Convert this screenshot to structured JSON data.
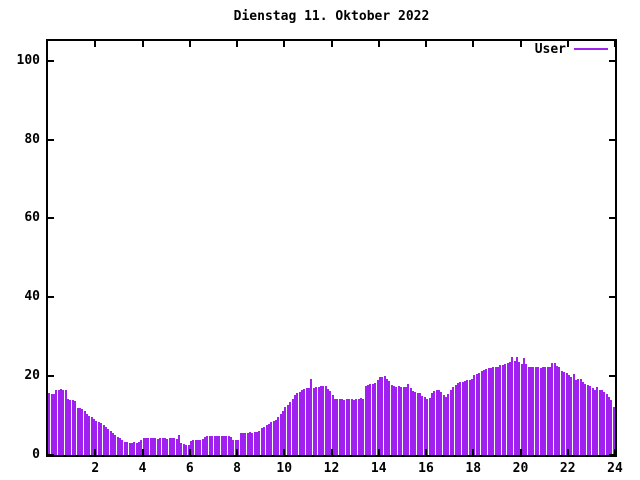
{
  "title": "Dienstag 11. Oktober 2022",
  "legend": {
    "label": "User"
  },
  "colors": {
    "bar": "#A020F0",
    "axis": "#000000",
    "background": "#ffffff"
  },
  "chart_data": {
    "type": "bar",
    "title": "Dienstag 11. Oktober 2022",
    "xlabel": "",
    "ylabel": "",
    "legend_entries": [
      "User"
    ],
    "legend_position": "top-right-inside",
    "grid": false,
    "bar_style": "impulses",
    "interval_minutes": 6,
    "xlim": [
      0,
      24
    ],
    "ylim": [
      0,
      105
    ],
    "xticks": [
      2,
      4,
      6,
      8,
      10,
      12,
      14,
      16,
      18,
      20,
      22,
      24
    ],
    "xtick_labels": [
      "2",
      "4",
      "6",
      "8",
      "10",
      "12",
      "14",
      "16",
      "18",
      "20",
      "22",
      "24"
    ],
    "yticks": [
      0,
      20,
      40,
      60,
      80,
      100
    ],
    "ytick_labels": [
      "0",
      "20",
      "40",
      "60",
      "80",
      "100"
    ],
    "series": [
      {
        "name": "User",
        "color": "#A020F0",
        "x_start_hour": 0.05,
        "x_step_hours": 0.1,
        "values": [
          15.8,
          15.4,
          15.4,
          16.6,
          16.6,
          16.8,
          16.6,
          16.4,
          14.2,
          14.0,
          13.9,
          13.6,
          12.0,
          11.9,
          11.6,
          11.2,
          10.4,
          10.0,
          9.6,
          9.2,
          8.6,
          8.3,
          8.0,
          7.6,
          7.2,
          6.6,
          6.0,
          5.5,
          5.0,
          4.6,
          4.2,
          3.8,
          3.4,
          3.2,
          3.0,
          3.0,
          3.2,
          3.1,
          3.3,
          3.8,
          4.2,
          4.4,
          4.3,
          4.2,
          4.3,
          4.2,
          4.1,
          4.2,
          4.3,
          4.2,
          4.1,
          4.2,
          4.3,
          4.2,
          4.1,
          5.1,
          3.0,
          2.8,
          2.6,
          2.5,
          3.6,
          3.8,
          3.9,
          3.8,
          3.9,
          4.0,
          4.6,
          4.8,
          4.7,
          4.8,
          4.8,
          4.7,
          4.8,
          4.9,
          4.8,
          4.7,
          4.8,
          4.6,
          3.9,
          3.8,
          3.8,
          5.5,
          5.6,
          5.7,
          5.6,
          5.8,
          5.7,
          5.8,
          5.9,
          6.2,
          6.8,
          7.2,
          7.5,
          7.8,
          8.4,
          8.6,
          9.0,
          9.7,
          10.4,
          11.2,
          12.2,
          12.7,
          13.5,
          14.3,
          15.2,
          15.6,
          16.0,
          16.4,
          16.7,
          16.9,
          17.0,
          19.2,
          17.0,
          17.2,
          17.3,
          17.5,
          17.6,
          17.5,
          16.8,
          16.2,
          15.1,
          14.3,
          14.2,
          14.1,
          14.2,
          14.0,
          14.1,
          14.2,
          14.1,
          14.0,
          14.1,
          14.2,
          14.4,
          14.2,
          17.4,
          17.8,
          18.0,
          18.0,
          18.2,
          19.0,
          19.7,
          19.9,
          20.1,
          19.4,
          18.8,
          17.8,
          17.4,
          17.3,
          17.4,
          17.3,
          17.2,
          17.3,
          18.0,
          17.0,
          16.2,
          15.9,
          15.8,
          15.6,
          15.0,
          14.6,
          14.3,
          14.5,
          15.8,
          16.2,
          16.6,
          16.4,
          15.9,
          15.2,
          14.8,
          15.4,
          16.4,
          17.2,
          17.8,
          18.2,
          18.5,
          18.6,
          18.8,
          18.9,
          19.0,
          19.2,
          20.3,
          20.6,
          20.8,
          21.2,
          21.6,
          21.8,
          22.0,
          22.1,
          22.2,
          22.3,
          22.4,
          22.7,
          22.9,
          23.1,
          23.3,
          23.6,
          24.9,
          23.8,
          24.8,
          23.5,
          23.2,
          24.6,
          23.1,
          22.4,
          22.2,
          22.2,
          22.3,
          22.2,
          22.1,
          22.2,
          22.2,
          22.3,
          22.2,
          23.3,
          23.4,
          22.5,
          22.3,
          21.3,
          21.0,
          20.9,
          20.4,
          19.9,
          20.5,
          19.0,
          19.2,
          19.4,
          18.6,
          18.0,
          17.7,
          17.5,
          16.9,
          16.6,
          17.3,
          16.6,
          16.4,
          16.0,
          15.4,
          14.7,
          13.9,
          12.2
        ]
      }
    ]
  }
}
